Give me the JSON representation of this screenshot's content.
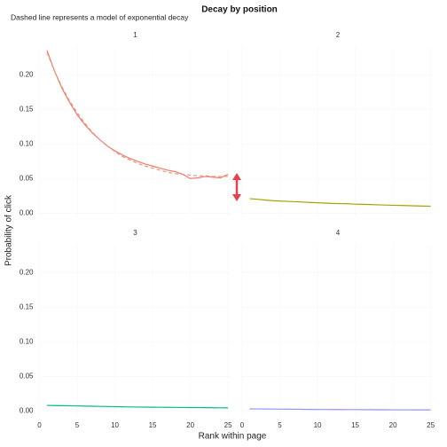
{
  "chart_data": {
    "type": "line",
    "title": "Decay by position",
    "subtitle": "Dashed line represents a model of exponential decay",
    "x_label": "Rank within page",
    "y_label": "Probability of click",
    "x": [
      1,
      2,
      3,
      4,
      5,
      6,
      7,
      8,
      9,
      10,
      11,
      12,
      13,
      14,
      15,
      16,
      17,
      18,
      19,
      20,
      21,
      22,
      23,
      24,
      25
    ],
    "xlim": [
      0,
      25.4
    ],
    "xticks": [
      0,
      5,
      10,
      15,
      20,
      25
    ],
    "ylim": [
      -0.006,
      0.24
    ],
    "yticks": [
      {
        "value": 0,
        "label": "0.00"
      },
      {
        "value": 0.05,
        "label": "0.05"
      },
      {
        "value": 0.1,
        "label": "0.10"
      },
      {
        "value": 0.15,
        "label": "0.15"
      },
      {
        "value": 0.2,
        "label": "0.20"
      }
    ],
    "grid": true,
    "model_color": "#e39a7a",
    "panels": [
      {
        "label": "1",
        "color": "#f8766d",
        "values": [
          0.235,
          0.205,
          0.18,
          0.16,
          0.142,
          0.128,
          0.116,
          0.106,
          0.097,
          0.09,
          0.084,
          0.079,
          0.075,
          0.071,
          0.068,
          0.065,
          0.062,
          0.06,
          0.056,
          0.05,
          0.051,
          0.053,
          0.052,
          0.051,
          0.056
        ],
        "model": [
          0.232,
          0.205,
          0.182,
          0.162,
          0.145,
          0.13,
          0.117,
          0.106,
          0.097,
          0.089,
          0.082,
          0.077,
          0.072,
          0.068,
          0.065,
          0.062,
          0.059,
          0.057,
          0.056,
          0.055,
          0.054,
          0.054,
          0.053,
          0.053,
          0.053
        ]
      },
      {
        "label": "2",
        "color": "#a3a500",
        "values": [
          0.021,
          0.02,
          0.019,
          0.018,
          0.0175,
          0.017,
          0.0165,
          0.016,
          0.0155,
          0.015,
          0.0145,
          0.014,
          0.0138,
          0.0135,
          0.013,
          0.0127,
          0.0124,
          0.012,
          0.0117,
          0.0114,
          0.0111,
          0.0108,
          0.0105,
          0.0102,
          0.01
        ]
      },
      {
        "label": "3",
        "color": "#00bf7d",
        "values": [
          0.008,
          0.0078,
          0.0076,
          0.0074,
          0.0072,
          0.007,
          0.0068,
          0.0066,
          0.0064,
          0.0062,
          0.006,
          0.0058,
          0.0056,
          0.0055,
          0.0054,
          0.0053,
          0.0052,
          0.0051,
          0.005,
          0.0049,
          0.0048,
          0.0047,
          0.0046,
          0.0045,
          0.0044
        ]
      },
      {
        "label": "4",
        "color": "#9590ff",
        "values": [
          0.003,
          0.0029,
          0.0028,
          0.0027,
          0.0026,
          0.0025,
          0.0024,
          0.0023,
          0.0022,
          0.0021,
          0.0021,
          0.002,
          0.002,
          0.0019,
          0.0019,
          0.0018,
          0.0018,
          0.0017,
          0.0017,
          0.0016,
          0.0016,
          0.0016,
          0.0015,
          0.0015,
          0.0015
        ]
      }
    ]
  }
}
